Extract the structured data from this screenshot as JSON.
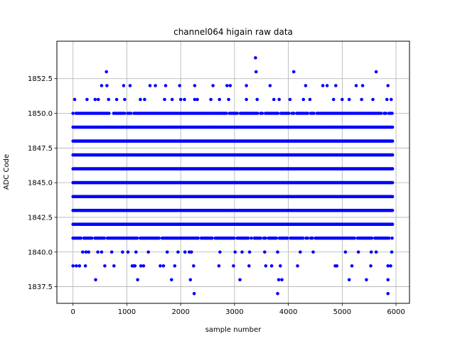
{
  "chart_data": {
    "type": "scatter",
    "title": "channel064 higain raw data",
    "xlabel": "sample number",
    "ylabel": "ADC Code",
    "xlim": [
      -300,
      6250
    ],
    "ylim": [
      1836.3,
      1855.2
    ],
    "xticks": [
      0,
      1000,
      2000,
      3000,
      4000,
      5000,
      6000
    ],
    "xtick_labels": [
      "0",
      "1000",
      "2000",
      "3000",
      "4000",
      "5000",
      "6000"
    ],
    "yticks": [
      1837.5,
      1840.0,
      1842.5,
      1845.0,
      1847.5,
      1850.0,
      1852.5
    ],
    "ytick_labels": [
      "1837.5",
      "1840.0",
      "1842.5",
      "1845.0",
      "1847.5",
      "1850.0",
      "1852.5"
    ],
    "grid": true,
    "marker_color": "#0000ff",
    "series": [
      {
        "x_start": 0,
        "x_end": 5950,
        "dense_levels": [
          1841,
          1842,
          1843,
          1844,
          1845,
          1846,
          1847,
          1848,
          1849,
          1850
        ],
        "sparse_points": [
          [
            0,
            1839
          ],
          [
            60,
            1839
          ],
          [
            120,
            1839
          ],
          [
            230,
            1839
          ],
          [
            590,
            1839
          ],
          [
            760,
            1839
          ],
          [
            1100,
            1839
          ],
          [
            1130,
            1839
          ],
          [
            1150,
            1839
          ],
          [
            1260,
            1839
          ],
          [
            1310,
            1839
          ],
          [
            1620,
            1839
          ],
          [
            1680,
            1839
          ],
          [
            1890,
            1839
          ],
          [
            2240,
            1839
          ],
          [
            2710,
            1839
          ],
          [
            2980,
            1839
          ],
          [
            3270,
            1839
          ],
          [
            3580,
            1839
          ],
          [
            3690,
            1839
          ],
          [
            3850,
            1839
          ],
          [
            4170,
            1839
          ],
          [
            4870,
            1839
          ],
          [
            4900,
            1839
          ],
          [
            5180,
            1839
          ],
          [
            5530,
            1839
          ],
          [
            5850,
            1839
          ],
          [
            5900,
            1839
          ],
          [
            180,
            1840
          ],
          [
            240,
            1840
          ],
          [
            290,
            1840
          ],
          [
            460,
            1840
          ],
          [
            530,
            1840
          ],
          [
            720,
            1840
          ],
          [
            920,
            1840
          ],
          [
            1020,
            1840
          ],
          [
            1170,
            1840
          ],
          [
            1400,
            1840
          ],
          [
            1750,
            1840
          ],
          [
            1950,
            1840
          ],
          [
            2080,
            1840
          ],
          [
            2160,
            1840
          ],
          [
            2200,
            1840
          ],
          [
            2730,
            1840
          ],
          [
            3010,
            1840
          ],
          [
            3140,
            1840
          ],
          [
            3280,
            1840
          ],
          [
            3560,
            1840
          ],
          [
            3800,
            1840
          ],
          [
            4220,
            1840
          ],
          [
            4460,
            1840
          ],
          [
            5060,
            1840
          ],
          [
            5300,
            1840
          ],
          [
            5540,
            1840
          ],
          [
            5630,
            1840
          ],
          [
            5920,
            1840
          ],
          [
            420,
            1838
          ],
          [
            1200,
            1838
          ],
          [
            1830,
            1838
          ],
          [
            2180,
            1838
          ],
          [
            3100,
            1838
          ],
          [
            3820,
            1838
          ],
          [
            3880,
            1838
          ],
          [
            5130,
            1838
          ],
          [
            5450,
            1838
          ],
          [
            5850,
            1838
          ],
          [
            2250,
            1837
          ],
          [
            3800,
            1837
          ],
          [
            5850,
            1837
          ],
          [
            30,
            1851
          ],
          [
            260,
            1851
          ],
          [
            410,
            1851
          ],
          [
            470,
            1851
          ],
          [
            660,
            1851
          ],
          [
            810,
            1851
          ],
          [
            960,
            1851
          ],
          [
            1250,
            1851
          ],
          [
            1330,
            1851
          ],
          [
            1700,
            1851
          ],
          [
            1840,
            1851
          ],
          [
            2000,
            1851
          ],
          [
            2070,
            1851
          ],
          [
            2260,
            1851
          ],
          [
            2310,
            1851
          ],
          [
            2560,
            1851
          ],
          [
            2720,
            1851
          ],
          [
            2890,
            1851
          ],
          [
            3220,
            1851
          ],
          [
            3420,
            1851
          ],
          [
            3730,
            1851
          ],
          [
            3830,
            1851
          ],
          [
            4030,
            1851
          ],
          [
            4280,
            1851
          ],
          [
            4400,
            1851
          ],
          [
            4840,
            1851
          ],
          [
            5000,
            1851
          ],
          [
            5130,
            1851
          ],
          [
            5360,
            1851
          ],
          [
            5570,
            1851
          ],
          [
            5830,
            1851
          ],
          [
            5910,
            1851
          ],
          [
            530,
            1852
          ],
          [
            630,
            1852
          ],
          [
            940,
            1852
          ],
          [
            1060,
            1852
          ],
          [
            1430,
            1852
          ],
          [
            1530,
            1852
          ],
          [
            1720,
            1852
          ],
          [
            1980,
            1852
          ],
          [
            2260,
            1852
          ],
          [
            2600,
            1852
          ],
          [
            2860,
            1852
          ],
          [
            2920,
            1852
          ],
          [
            3220,
            1852
          ],
          [
            3660,
            1852
          ],
          [
            4320,
            1852
          ],
          [
            4640,
            1852
          ],
          [
            4720,
            1852
          ],
          [
            4880,
            1852
          ],
          [
            5260,
            1852
          ],
          [
            5380,
            1852
          ],
          [
            5850,
            1852
          ],
          [
            620,
            1853
          ],
          [
            3400,
            1853
          ],
          [
            4100,
            1853
          ],
          [
            5630,
            1853
          ],
          [
            3390,
            1854
          ]
        ]
      }
    ]
  }
}
